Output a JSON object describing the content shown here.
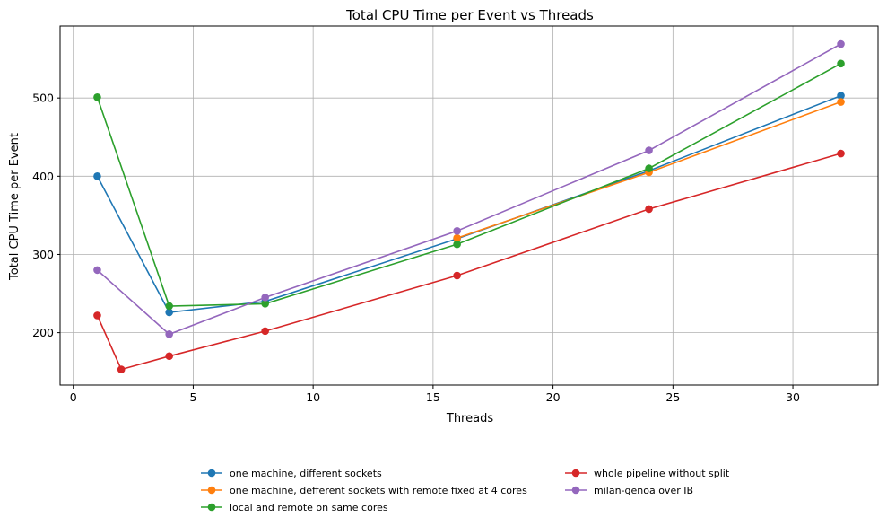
{
  "chart_data": {
    "type": "line",
    "title": "Total CPU Time per Event vs Threads",
    "xlabel": "Threads",
    "ylabel": "Total CPU Time per Event",
    "xlim": [
      -0.55,
      33.55
    ],
    "ylim": [
      133,
      592
    ],
    "xticks": [
      0,
      5,
      10,
      15,
      20,
      25,
      30
    ],
    "yticks": [
      200,
      300,
      400,
      500
    ],
    "grid": true,
    "legend_position": "bottom-center",
    "series": [
      {
        "name": "one machine, different sockets",
        "color": "#1f77b4",
        "x": [
          1,
          4,
          8,
          16,
          24,
          32
        ],
        "y": [
          400,
          226,
          240,
          320,
          407,
          503
        ]
      },
      {
        "name": "one machine, defferent sockets with remote fixed at 4 cores",
        "color": "#ff7f0e",
        "x": [
          16,
          24,
          32
        ],
        "y": [
          321,
          405,
          495
        ]
      },
      {
        "name": "local and remote on same cores",
        "color": "#2ca02c",
        "x": [
          1,
          4,
          8,
          16,
          24,
          32
        ],
        "y": [
          501,
          234,
          237,
          313,
          410,
          544
        ]
      },
      {
        "name": "whole pipeline without split",
        "color": "#d62728",
        "x": [
          1,
          2,
          4,
          8,
          16,
          24,
          32
        ],
        "y": [
          222,
          153,
          170,
          202,
          273,
          358,
          429
        ]
      },
      {
        "name": "milan-genoa over IB",
        "color": "#9467bd",
        "x": [
          1,
          4,
          8,
          16,
          24,
          32
        ],
        "y": [
          280,
          198,
          245,
          330,
          433,
          569
        ]
      }
    ]
  }
}
